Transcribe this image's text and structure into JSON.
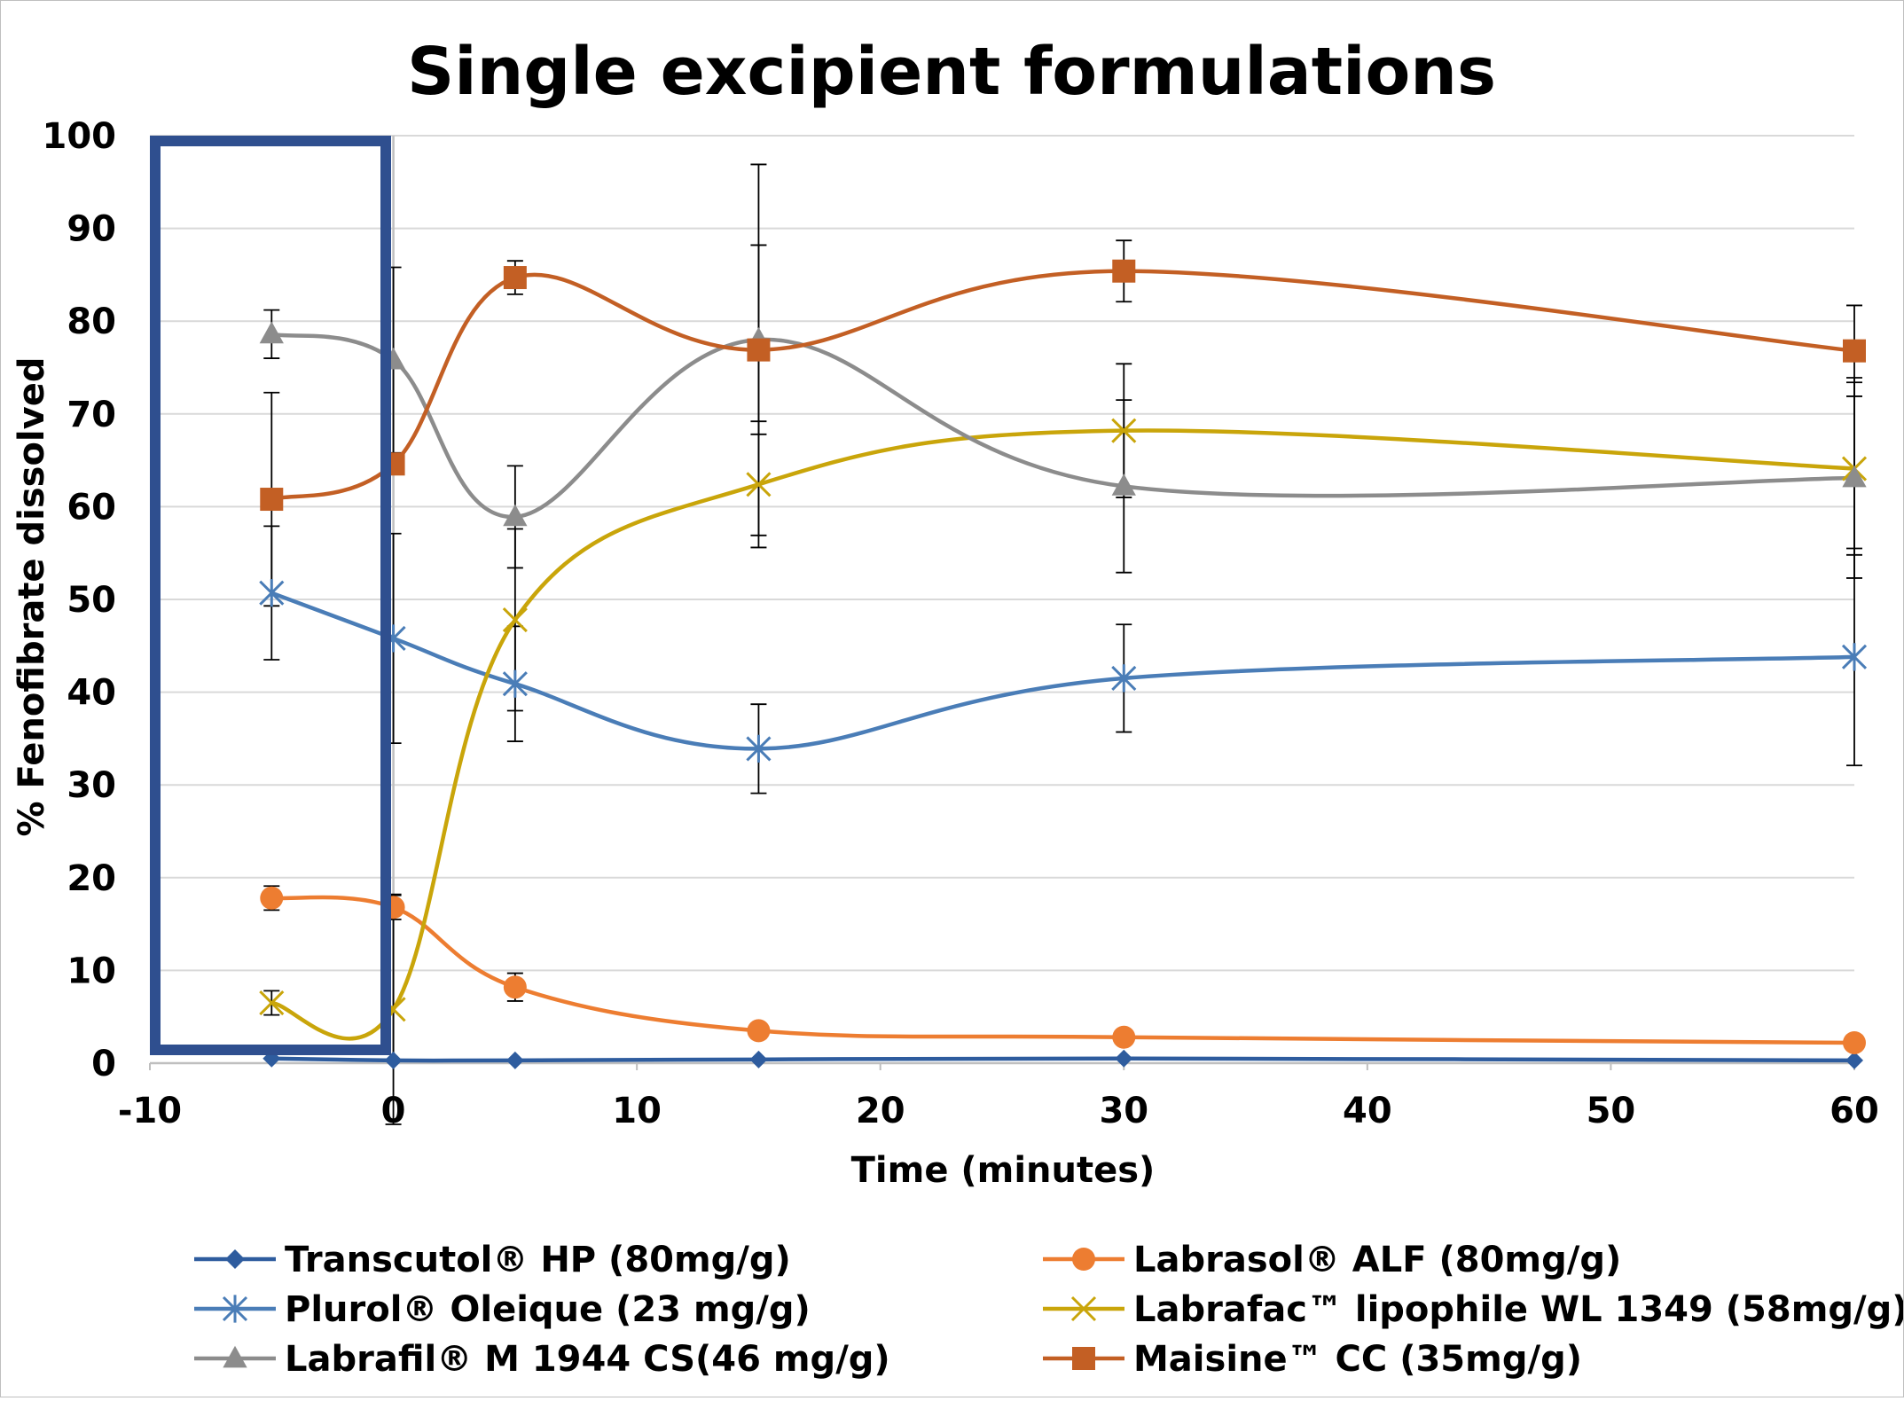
{
  "chart_data": {
    "type": "line",
    "title": "Single excipient formulations",
    "xlabel": "Time (minutes)",
    "ylabel": "% Fenofibrate dissolved",
    "xlim": [
      -10,
      60
    ],
    "ylim": [
      0,
      100
    ],
    "x_ticks": [
      "-10",
      "0",
      "10",
      "20",
      "30",
      "40",
      "50",
      "60"
    ],
    "y_ticks": [
      "0",
      "10",
      "20",
      "30",
      "40",
      "50",
      "60",
      "70",
      "80",
      "90",
      "100"
    ],
    "grid": true,
    "legend_position": "bottom",
    "x": [
      -5,
      0,
      5,
      15,
      30,
      60
    ],
    "series": [
      {
        "name": "Transcutol® HP (80mg/g)",
        "color": "#2e5c9e",
        "marker": "diamond",
        "values": [
          0.5,
          0.3,
          0.3,
          0.4,
          0.5,
          0.3
        ],
        "error": [
          0,
          0,
          0,
          0,
          0,
          0
        ]
      },
      {
        "name": "Labrasol® ALF (80mg/g)",
        "color": "#ed7d31",
        "marker": "circle",
        "values": [
          17.8,
          16.8,
          8.2,
          3.5,
          2.8,
          2.2
        ],
        "error": [
          1.3,
          1.3,
          1.5,
          0,
          0,
          0
        ]
      },
      {
        "name": "Plurol® Oleique (23 mg/g)",
        "color": "#4a7db7",
        "marker": "asterisk",
        "values": [
          50.7,
          45.8,
          40.9,
          33.9,
          41.5,
          43.8
        ],
        "error": [
          7.2,
          11.3,
          6.2,
          4.8,
          5.8,
          11.7
        ]
      },
      {
        "name": "Labrafac™ lipophile WL 1349 (58mg/g)",
        "color": "#c9a50a",
        "marker": "x",
        "values": [
          6.5,
          5.8,
          47.8,
          62.4,
          68.2,
          64.1
        ],
        "error": [
          1.3,
          12.4,
          9.8,
          6.8,
          7.2,
          9.3
        ]
      },
      {
        "name": "Labrafil® M 1944 CS(46 mg/g)",
        "color": "#8c8c8c",
        "marker": "triangle",
        "values": [
          78.6,
          75.8,
          58.9,
          78.0,
          62.2,
          63.1
        ],
        "error": [
          2.6,
          10.0,
          5.5,
          10.2,
          9.3,
          10.8
        ]
      },
      {
        "name": "Maisine™ CC (35mg/g)",
        "color": "#c35f24",
        "marker": "square",
        "values": [
          60.8,
          64.6,
          84.7,
          76.9,
          85.4,
          76.8
        ],
        "error": [
          11.5,
          0,
          1.8,
          20.0,
          3.3,
          4.9
        ]
      }
    ]
  }
}
